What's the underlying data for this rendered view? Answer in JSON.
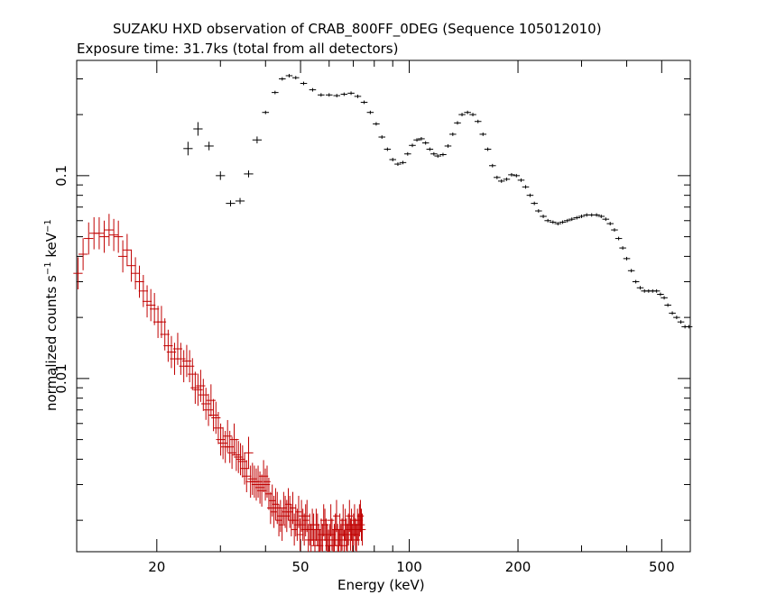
{
  "chart_data": {
    "type": "scatter",
    "title": "SUZAKU HXD observation of CRAB_800FF_0DEG (Sequence 105012010)",
    "subtitle": "Exposure time: 31.7ks (total from all detectors)",
    "xlabel": "Energy (keV)",
    "ylabel": {
      "prefix": "normalized counts s",
      "exp1": "−1",
      "mid": " keV",
      "exp2": "−1"
    },
    "xscale": "log",
    "yscale": "log",
    "xlim": [
      12,
      600
    ],
    "ylim": [
      0.0014,
      0.37
    ],
    "xticks": [
      20,
      50,
      100,
      200,
      500
    ],
    "xtick_labels": [
      "20",
      "50",
      "100",
      "200",
      "500"
    ],
    "yticks": [
      0.01,
      0.1
    ],
    "ytick_labels": [
      "0.01",
      "0.1"
    ],
    "series": [
      {
        "color": "#000000",
        "points": [
          [
            24.4,
            0.136,
            0.08
          ],
          [
            26.0,
            0.17,
            0.08
          ],
          [
            27.9,
            0.14,
            0.05
          ],
          [
            30.0,
            0.1,
            0.05
          ],
          [
            32.0,
            0.073,
            0.035
          ],
          [
            34.0,
            0.075,
            0.035
          ],
          [
            35.9,
            0.102,
            0.04
          ],
          [
            37.9,
            0.15,
            0.04
          ],
          [
            40.0,
            0.205,
            0.02
          ],
          [
            42.5,
            0.257,
            0.02
          ],
          [
            44.5,
            0.3,
            0.02
          ],
          [
            46.5,
            0.311,
            0.02
          ],
          [
            48.5,
            0.304,
            0.02
          ],
          [
            51.0,
            0.285,
            0.02
          ],
          [
            54.0,
            0.265,
            0.02
          ],
          [
            57.0,
            0.25,
            0.02
          ],
          [
            60.0,
            0.25,
            0.02
          ],
          [
            63.0,
            0.248,
            0.02
          ],
          [
            66.0,
            0.252,
            0.02
          ],
          [
            69.0,
            0.255,
            0.02
          ],
          [
            72.0,
            0.246,
            0.02
          ],
          [
            75.0,
            0.23,
            0.02
          ],
          [
            78.0,
            0.205,
            0.02
          ],
          [
            81.0,
            0.18,
            0.02
          ],
          [
            84.0,
            0.155,
            0.02
          ],
          [
            87.0,
            0.135,
            0.02
          ],
          [
            90.0,
            0.12,
            0.02
          ],
          [
            93.0,
            0.114,
            0.02
          ],
          [
            96.0,
            0.116,
            0.02
          ],
          [
            99.0,
            0.128,
            0.02
          ],
          [
            102.0,
            0.141,
            0.02
          ],
          [
            105.0,
            0.15,
            0.02
          ],
          [
            108.0,
            0.152,
            0.02
          ],
          [
            111.0,
            0.145,
            0.02
          ],
          [
            114.0,
            0.135,
            0.02
          ],
          [
            117.0,
            0.128,
            0.02
          ],
          [
            120.0,
            0.125,
            0.02
          ],
          [
            124.0,
            0.127,
            0.02
          ],
          [
            128.0,
            0.14,
            0.02
          ],
          [
            132.0,
            0.16,
            0.02
          ],
          [
            136.0,
            0.182,
            0.02
          ],
          [
            140.0,
            0.2,
            0.02
          ],
          [
            145.0,
            0.205,
            0.02
          ],
          [
            150.0,
            0.2,
            0.02
          ],
          [
            155.0,
            0.185,
            0.02
          ],
          [
            160.0,
            0.16,
            0.02
          ],
          [
            165.0,
            0.135,
            0.02
          ],
          [
            170.0,
            0.112,
            0.02
          ],
          [
            175.0,
            0.098,
            0.02
          ],
          [
            180.0,
            0.094,
            0.02
          ],
          [
            186.0,
            0.096,
            0.02
          ],
          [
            192.0,
            0.101,
            0.02
          ],
          [
            198.0,
            0.1,
            0.02
          ],
          [
            204.0,
            0.095,
            0.02
          ],
          [
            210.0,
            0.088,
            0.02
          ],
          [
            216.0,
            0.08,
            0.02
          ],
          [
            222.0,
            0.073,
            0.02
          ],
          [
            228.0,
            0.067,
            0.02
          ],
          [
            235.0,
            0.063,
            0.02
          ],
          [
            242.0,
            0.06,
            0.02
          ],
          [
            250.0,
            0.059,
            0.02
          ],
          [
            258.0,
            0.058,
            0.02
          ],
          [
            266.0,
            0.059,
            0.02
          ],
          [
            274.0,
            0.06,
            0.02
          ],
          [
            282.0,
            0.061,
            0.02
          ],
          [
            291.0,
            0.062,
            0.02
          ],
          [
            300.0,
            0.063,
            0.02
          ],
          [
            310.0,
            0.064,
            0.02
          ],
          [
            320.0,
            0.064,
            0.02
          ],
          [
            330.0,
            0.064,
            0.02
          ],
          [
            340.0,
            0.063,
            0.02
          ],
          [
            350.0,
            0.061,
            0.02
          ],
          [
            360.0,
            0.058,
            0.02
          ],
          [
            370.0,
            0.054,
            0.02
          ],
          [
            380.0,
            0.049,
            0.02
          ],
          [
            390.0,
            0.044,
            0.02
          ],
          [
            400.0,
            0.039,
            0.02
          ],
          [
            412.0,
            0.034,
            0.02
          ],
          [
            424.0,
            0.03,
            0.02
          ],
          [
            436.0,
            0.028,
            0.02
          ],
          [
            448.0,
            0.027,
            0.02
          ],
          [
            460.0,
            0.027,
            0.02
          ],
          [
            472.0,
            0.027,
            0.02
          ],
          [
            484.0,
            0.027,
            0.02
          ],
          [
            496.0,
            0.026,
            0.02
          ],
          [
            508.0,
            0.025,
            0.02
          ],
          [
            520.0,
            0.023,
            0.02
          ],
          [
            535.0,
            0.021,
            0.02
          ],
          [
            550.0,
            0.02,
            0.02
          ],
          [
            565.0,
            0.019,
            0.02
          ],
          [
            580.0,
            0.018,
            0.02
          ],
          [
            595.0,
            0.018,
            0.02
          ]
        ]
      },
      {
        "color": "#c00000",
        "points": [
          [
            12.1,
            0.033,
            0.2
          ],
          [
            12.5,
            0.041,
            0.2
          ],
          [
            12.95,
            0.049,
            0.2
          ],
          [
            13.4,
            0.052,
            0.2
          ],
          [
            13.85,
            0.052,
            0.2
          ],
          [
            14.3,
            0.05,
            0.2
          ],
          [
            14.75,
            0.054,
            0.2
          ],
          [
            15.2,
            0.051,
            0.2
          ],
          [
            15.65,
            0.05,
            0.2
          ],
          [
            16.1,
            0.04,
            0.2
          ],
          [
            16.55,
            0.043,
            0.2
          ],
          [
            17.0,
            0.036,
            0.2
          ],
          [
            17.45,
            0.033,
            0.2
          ],
          [
            17.9,
            0.03,
            0.2
          ],
          [
            18.35,
            0.027,
            0.2
          ],
          [
            18.8,
            0.024,
            0.2
          ],
          [
            19.25,
            0.023,
            0.2
          ],
          [
            19.7,
            0.022,
            0.2
          ],
          [
            20.15,
            0.019,
            0.2
          ],
          [
            20.6,
            0.019,
            0.2
          ],
          [
            21.05,
            0.0165,
            0.2
          ],
          [
            21.5,
            0.0145,
            0.2
          ],
          [
            21.95,
            0.0135,
            0.2
          ],
          [
            22.4,
            0.0125,
            0.2
          ],
          [
            22.85,
            0.014,
            0.2
          ],
          [
            23.3,
            0.0125,
            0.2
          ],
          [
            23.75,
            0.0115,
            0.2
          ],
          [
            24.2,
            0.0122,
            0.2
          ],
          [
            24.65,
            0.0115,
            0.2
          ],
          [
            25.1,
            0.0105,
            0.2
          ],
          [
            25.55,
            0.009,
            0.2
          ],
          [
            26.0,
            0.0088,
            0.2
          ],
          [
            26.45,
            0.0092,
            0.2
          ],
          [
            26.9,
            0.0083,
            0.2
          ],
          [
            27.35,
            0.0075,
            0.2
          ],
          [
            27.8,
            0.007,
            0.2
          ],
          [
            28.25,
            0.0078,
            0.2
          ],
          [
            28.7,
            0.0066,
            0.2
          ],
          [
            29.15,
            0.0064,
            0.2
          ],
          [
            29.6,
            0.0057,
            0.2
          ],
          [
            30.05,
            0.005,
            0.2
          ],
          [
            30.5,
            0.0048,
            0.2
          ],
          [
            30.95,
            0.0046,
            0.2
          ],
          [
            31.4,
            0.0052,
            0.2
          ],
          [
            31.85,
            0.0046,
            0.2
          ],
          [
            32.3,
            0.0043,
            0.2
          ],
          [
            32.75,
            0.005,
            0.2
          ],
          [
            33.2,
            0.0042,
            0.2
          ],
          [
            33.65,
            0.0041,
            0.2
          ],
          [
            34.1,
            0.004,
            0.2
          ],
          [
            34.55,
            0.0039,
            0.2
          ],
          [
            35.0,
            0.0036,
            0.2
          ],
          [
            35.45,
            0.0033,
            0.2
          ],
          [
            35.9,
            0.0043,
            0.2
          ],
          [
            36.35,
            0.0031,
            0.2
          ],
          [
            36.8,
            0.0032,
            0.2
          ],
          [
            37.25,
            0.0031,
            0.2
          ],
          [
            37.7,
            0.003,
            0.2
          ],
          [
            38.15,
            0.0031,
            0.2
          ],
          [
            38.6,
            0.0029,
            0.2
          ],
          [
            39.05,
            0.0028,
            0.2
          ],
          [
            39.5,
            0.0033,
            0.2
          ],
          [
            39.95,
            0.003,
            0.2
          ],
          [
            40.4,
            0.0031,
            0.2
          ],
          [
            40.85,
            0.0027,
            0.2
          ],
          [
            41.3,
            0.0023,
            0.2
          ],
          [
            41.75,
            0.0025,
            0.2
          ],
          [
            42.2,
            0.0022,
            0.2
          ],
          [
            42.65,
            0.0024,
            0.2
          ],
          [
            43.1,
            0.0023,
            0.2
          ],
          [
            43.55,
            0.002,
            0.2
          ],
          [
            44.0,
            0.0021,
            0.2
          ],
          [
            44.45,
            0.0019,
            0.2
          ],
          [
            44.9,
            0.0023,
            0.2
          ],
          [
            45.35,
            0.0022,
            0.2
          ],
          [
            45.8,
            0.0021,
            0.2
          ],
          [
            46.25,
            0.0024,
            0.2
          ],
          [
            46.7,
            0.0022,
            0.2
          ],
          [
            47.15,
            0.002,
            0.2
          ],
          [
            47.6,
            0.0023,
            0.2
          ],
          [
            48.05,
            0.0018,
            0.2
          ],
          [
            48.5,
            0.002,
            0.2
          ],
          [
            48.95,
            0.0019,
            0.2
          ],
          [
            49.4,
            0.0022,
            0.2
          ],
          [
            49.85,
            0.0017,
            0.2
          ],
          [
            50.3,
            0.0021,
            0.2
          ],
          [
            50.75,
            0.0019,
            0.2
          ],
          [
            51.2,
            0.0018,
            0.2
          ],
          [
            51.65,
            0.002,
            0.2
          ],
          [
            52.1,
            0.0021,
            0.2
          ],
          [
            52.55,
            0.0016,
            0.2
          ],
          [
            53.0,
            0.0018,
            0.2
          ],
          [
            53.45,
            0.0016,
            0.2
          ],
          [
            53.9,
            0.0019,
            0.2
          ],
          [
            54.35,
            0.0018,
            0.2
          ],
          [
            54.8,
            0.0015,
            0.2
          ],
          [
            55.25,
            0.0019,
            0.2
          ],
          [
            55.7,
            0.0018,
            0.2
          ],
          [
            56.15,
            0.0016,
            0.2
          ],
          [
            56.6,
            0.0015,
            0.2
          ],
          [
            57.05,
            0.0017,
            0.2
          ],
          [
            57.5,
            0.0016,
            0.2
          ],
          [
            57.95,
            0.002,
            0.2
          ],
          [
            58.4,
            0.0019,
            0.2
          ],
          [
            58.85,
            0.0017,
            0.2
          ],
          [
            59.3,
            0.0016,
            0.2
          ],
          [
            59.75,
            0.0015,
            0.2
          ],
          [
            60.2,
            0.0016,
            0.2
          ],
          [
            60.65,
            0.002,
            0.2
          ],
          [
            61.1,
            0.0017,
            0.2
          ],
          [
            61.55,
            0.0015,
            0.2
          ],
          [
            62.0,
            0.0016,
            0.2
          ],
          [
            62.45,
            0.0018,
            0.2
          ],
          [
            62.9,
            0.0021,
            0.2
          ],
          [
            63.35,
            0.0016,
            0.2
          ],
          [
            63.8,
            0.0015,
            0.2
          ],
          [
            64.25,
            0.0018,
            0.2
          ],
          [
            64.7,
            0.0016,
            0.2
          ],
          [
            65.15,
            0.0017,
            0.2
          ],
          [
            65.6,
            0.002,
            0.2
          ],
          [
            66.05,
            0.0015,
            0.2
          ],
          [
            66.5,
            0.0019,
            0.2
          ],
          [
            66.95,
            0.0017,
            0.2
          ],
          [
            67.4,
            0.0016,
            0.2
          ],
          [
            67.85,
            0.0018,
            0.2
          ],
          [
            68.3,
            0.0021,
            0.2
          ],
          [
            68.75,
            0.0017,
            0.2
          ],
          [
            69.2,
            0.0019,
            0.2
          ],
          [
            69.65,
            0.0016,
            0.2
          ],
          [
            70.1,
            0.0018,
            0.2
          ],
          [
            70.55,
            0.002,
            0.2
          ],
          [
            71.0,
            0.0017,
            0.2
          ],
          [
            71.45,
            0.0016,
            0.2
          ],
          [
            71.9,
            0.0019,
            0.2
          ],
          [
            72.35,
            0.0018,
            0.2
          ],
          [
            72.8,
            0.002,
            0.2
          ],
          [
            73.25,
            0.0021,
            0.2
          ],
          [
            73.7,
            0.0019,
            0.2
          ],
          [
            74.15,
            0.0018,
            0.2
          ]
        ]
      }
    ]
  }
}
